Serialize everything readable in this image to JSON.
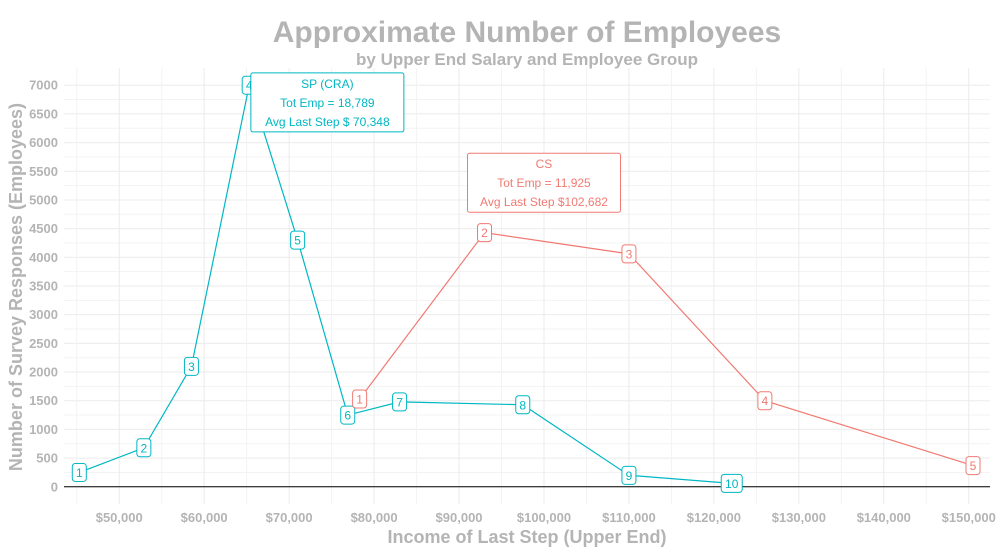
{
  "chart_data": {
    "type": "line",
    "title": "Approximate Number of Employees",
    "subtitle": "by Upper End Salary and Employee Group",
    "xlabel": "Income of Last Step (Upper End)",
    "ylabel": "Number of Survey Responses (Employees)",
    "xlim": [
      43500,
      152500
    ],
    "ylim": [
      -300,
      7300
    ],
    "x_ticks": [
      50000,
      60000,
      70000,
      80000,
      90000,
      100000,
      110000,
      120000,
      130000,
      140000,
      150000
    ],
    "x_tick_labels": [
      "$50,000",
      "$60,000",
      "$70,000",
      "$80,000",
      "$90,000",
      "$100,000",
      "$110,000",
      "$120,000",
      "$130,000",
      "$140,000",
      "$150,000"
    ],
    "y_ticks": [
      0,
      500,
      1000,
      1500,
      2000,
      2500,
      3000,
      3500,
      4000,
      4500,
      5000,
      5500,
      6000,
      6500,
      7000
    ],
    "y_tick_labels": [
      "0",
      "500",
      "1000",
      "1500",
      "2000",
      "2500",
      "3000",
      "3500",
      "4000",
      "4500",
      "5000",
      "5500",
      "6000",
      "6500",
      "7000"
    ],
    "grid": true,
    "series": [
      {
        "color": "#00b7c3",
        "points": [
          {
            "x": 45300,
            "y": 250,
            "label": "1"
          },
          {
            "x": 52900,
            "y": 680,
            "label": "2"
          },
          {
            "x": 58500,
            "y": 2100,
            "label": "3"
          },
          {
            "x": 65300,
            "y": 7000,
            "label": "4"
          },
          {
            "x": 71000,
            "y": 4300,
            "label": "5"
          },
          {
            "x": 76900,
            "y": 1250,
            "label": "6"
          },
          {
            "x": 83000,
            "y": 1480,
            "label": "7"
          },
          {
            "x": 97500,
            "y": 1430,
            "label": "8"
          },
          {
            "x": 110000,
            "y": 200,
            "label": "9"
          },
          {
            "x": 122100,
            "y": 60,
            "label": "10"
          }
        ],
        "annotation": {
          "x": 74500,
          "y": 6700,
          "lines": [
            "SP (CRA)",
            "Tot Emp = 18,789",
            "Avg Last Step $ 70,348"
          ]
        }
      },
      {
        "color": "#f07a72",
        "points": [
          {
            "x": 78300,
            "y": 1530,
            "label": "1"
          },
          {
            "x": 93000,
            "y": 4430,
            "label": "2"
          },
          {
            "x": 110000,
            "y": 4060,
            "label": "3"
          },
          {
            "x": 126000,
            "y": 1500,
            "label": "4"
          },
          {
            "x": 150500,
            "y": 370,
            "label": "5"
          }
        ],
        "annotation": {
          "x": 100000,
          "y": 5300,
          "lines": [
            "CS",
            "Tot Emp = 11,925",
            "Avg Last Step $102,682"
          ]
        }
      }
    ]
  }
}
